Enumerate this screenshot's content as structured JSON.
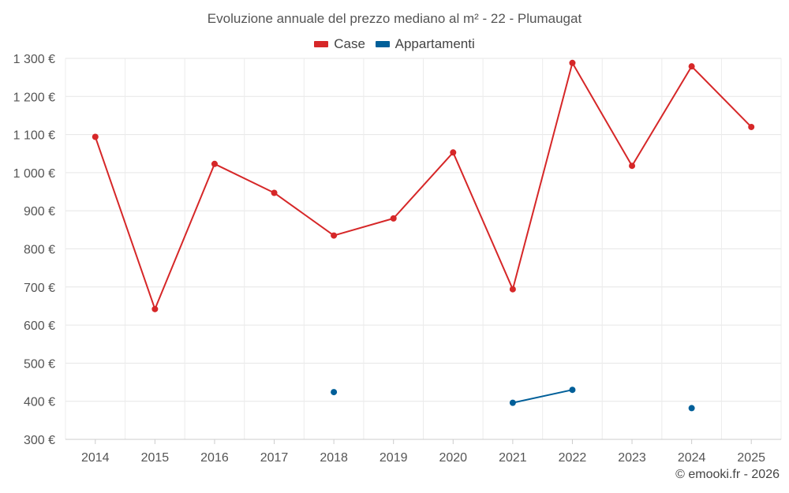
{
  "chart_data": {
    "type": "line",
    "title": "Evoluzione annuale del prezzo mediano al m² - 22 - Plumaugat",
    "categories": [
      "2014",
      "2015",
      "2016",
      "2017",
      "2018",
      "2019",
      "2020",
      "2021",
      "2022",
      "2023",
      "2024",
      "2025"
    ],
    "y_tick_labels": [
      "300 €",
      "400 €",
      "500 €",
      "600 €",
      "700 €",
      "800 €",
      "900 €",
      "1 000 €",
      "1 100 €",
      "1 200 €",
      "1 300 €"
    ],
    "y_ticks": [
      300,
      400,
      500,
      600,
      700,
      800,
      900,
      1000,
      1100,
      1200,
      1300
    ],
    "ylim": [
      300,
      1300
    ],
    "grid": true,
    "legend_position": "top-center",
    "series": [
      {
        "name": "Case",
        "color": "#d62728",
        "values": [
          1094,
          642,
          1023,
          947,
          835,
          880,
          1053,
          694,
          1288,
          1018,
          1279,
          1120
        ]
      },
      {
        "name": "Appartamenti",
        "color": "#005f99",
        "values": [
          null,
          null,
          null,
          null,
          424,
          null,
          null,
          396,
          430,
          null,
          382,
          null
        ]
      }
    ]
  },
  "credit": "© emooki.fr - 2026"
}
